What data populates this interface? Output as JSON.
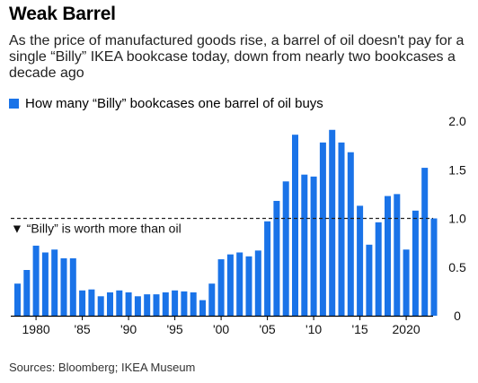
{
  "colors": {
    "bar": "#1a73e8",
    "axis": "#000000",
    "reference_line": "#222222"
  },
  "chart_data": {
    "type": "bar",
    "title": "Weak Barrel",
    "subtitle": "As the price of manufactured goods rise, a barrel of oil doesn't pay for a single “Billy” IKEA bookcase today, down from nearly two bookcases a decade ago",
    "legend": [
      {
        "name": "How many “Billy” bookcases one barrel of oil buys"
      }
    ],
    "series": [
      {
        "name": "How many “Billy” bookcases one barrel of oil buys",
        "x": [
          1978,
          1979,
          1980,
          1981,
          1982,
          1983,
          1984,
          1985,
          1986,
          1987,
          1988,
          1989,
          1990,
          1991,
          1992,
          1993,
          1994,
          1995,
          1996,
          1997,
          1998,
          1999,
          2000,
          2001,
          2002,
          2003,
          2004,
          2005,
          2006,
          2007,
          2008,
          2009,
          2010,
          2011,
          2012,
          2013,
          2014,
          2015,
          2016,
          2017,
          2018,
          2019,
          2020,
          2021,
          2022,
          2023
        ],
        "values": [
          0.33,
          0.47,
          0.72,
          0.65,
          0.68,
          0.59,
          0.59,
          0.26,
          0.27,
          0.2,
          0.24,
          0.26,
          0.24,
          0.2,
          0.22,
          0.22,
          0.24,
          0.26,
          0.25,
          0.24,
          0.16,
          0.33,
          0.58,
          0.63,
          0.65,
          0.61,
          0.67,
          0.97,
          1.18,
          1.38,
          1.86,
          1.45,
          1.43,
          1.78,
          1.91,
          1.78,
          1.68,
          1.13,
          0.73,
          0.96,
          1.23,
          1.25,
          0.68,
          1.08,
          1.52,
          1.0
        ]
      }
    ],
    "x_tick_labels": [
      {
        "x": 1980,
        "label": "1980"
      },
      {
        "x": 1985,
        "label": "'85"
      },
      {
        "x": 1990,
        "label": "'90"
      },
      {
        "x": 1995,
        "label": "'95"
      },
      {
        "x": 2000,
        "label": "'00"
      },
      {
        "x": 2005,
        "label": "'05"
      },
      {
        "x": 2010,
        "label": "'10"
      },
      {
        "x": 2015,
        "label": "'15"
      },
      {
        "x": 2020,
        "label": "2020"
      }
    ],
    "y_ticks": [
      {
        "value": 0,
        "label": "0"
      },
      {
        "value": 0.5,
        "label": "0.5"
      },
      {
        "value": 1.0,
        "label": "1.0"
      },
      {
        "value": 1.5,
        "label": "1.5"
      },
      {
        "value": 2.0,
        "label": "2.0"
      }
    ],
    "ylim": [
      0,
      2.0
    ],
    "xlabel": "",
    "ylabel": "",
    "y_axis_position": "right",
    "grid": false,
    "reference_line": {
      "y": 1.0,
      "style": "dashed"
    },
    "annotation": {
      "text": "▼ “Billy” is worth more than oil"
    }
  },
  "source": "Sources: Bloomberg; IKEA Museum"
}
